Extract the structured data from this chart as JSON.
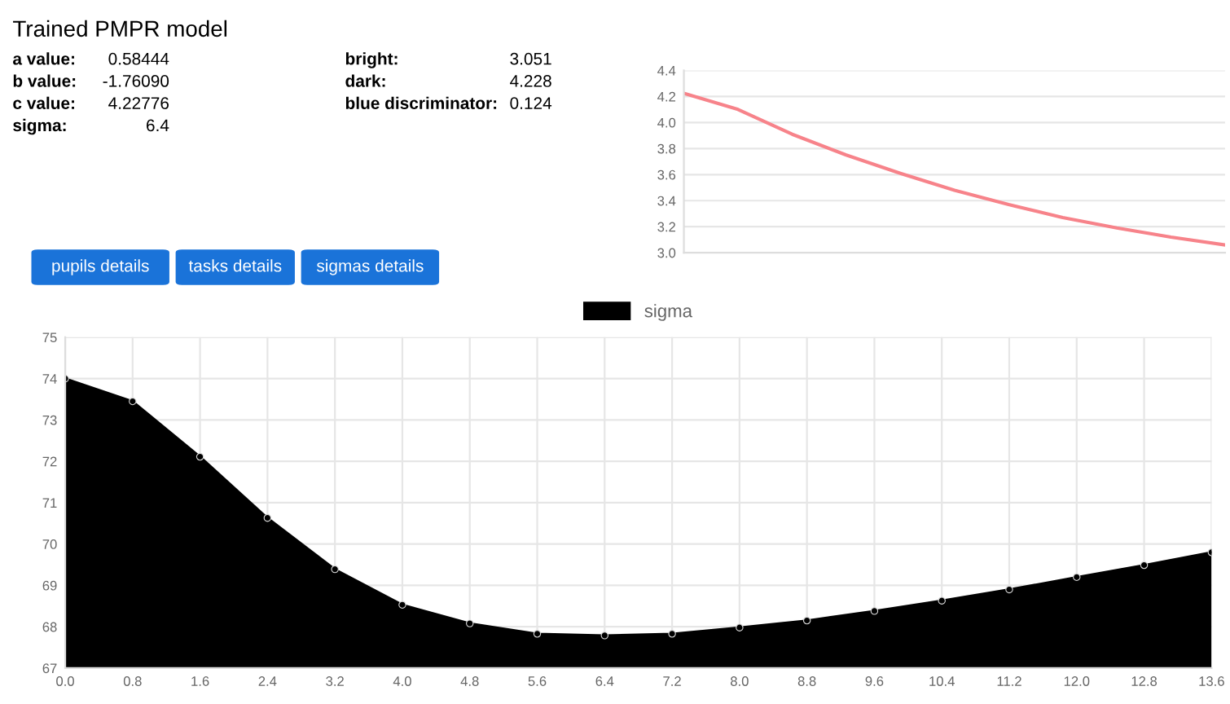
{
  "chart_data": [
    {
      "type": "other",
      "title": "Trained PMPR model",
      "annotations": [
        "a value:",
        "0.58444",
        "b value:",
        "-1.76090",
        "c value:",
        "4.22776",
        "sigma:",
        "6.4",
        "bright:",
        "3.051",
        "dark:",
        "4.228",
        "blue discriminator:",
        "0.124",
        "pupils details",
        "tasks details",
        "sigmas details"
      ]
    },
    {
      "type": "line",
      "categories": [
        null,
        null,
        null,
        null,
        null,
        null,
        null,
        null,
        null,
        null,
        null
      ],
      "series": [
        {
          "color": "#f7838a",
          "values": [
            4.225,
            4.1,
            3.91,
            3.75,
            3.61,
            3.48,
            3.37,
            3.27,
            3.19,
            3.12,
            3.06
          ]
        }
      ],
      "ylim": [
        3.0,
        4.4
      ],
      "yticks": [
        {
          "value": 3.0,
          "label": "3.0"
        },
        {
          "value": 3.2,
          "label": "3.2"
        },
        {
          "value": 3.4,
          "label": "3.4"
        },
        {
          "value": 3.6,
          "label": "3.6"
        },
        {
          "value": 3.8,
          "label": "3.8"
        },
        {
          "value": 4.0,
          "label": "4.0"
        },
        {
          "value": 4.2,
          "label": "4.2"
        },
        {
          "value": 4.4,
          "label": "4.4"
        }
      ],
      "grid": "y",
      "tick_labels": "y",
      "marker": "none"
    },
    {
      "type": "area",
      "x": [
        0.0,
        0.8,
        1.6,
        2.4,
        3.2,
        4.0,
        4.8,
        5.6,
        6.4,
        7.2,
        8.0,
        8.8,
        9.6,
        10.4,
        11.2,
        12.0,
        12.8,
        13.6
      ],
      "series": [
        {
          "name": "sigma",
          "color": "#000000",
          "values": [
            74.0,
            73.45,
            72.11,
            70.63,
            69.39,
            68.53,
            68.08,
            67.83,
            67.79,
            67.83,
            67.98,
            68.15,
            68.38,
            68.63,
            68.9,
            69.2,
            69.49,
            69.8
          ]
        }
      ],
      "xlim": [
        0.0,
        13.6
      ],
      "xticks": [
        {
          "value": 0.0,
          "label": "0.0"
        },
        {
          "value": 0.8,
          "label": "0.8"
        },
        {
          "value": 1.6,
          "label": "1.6"
        },
        {
          "value": 2.4,
          "label": "2.4"
        },
        {
          "value": 3.2,
          "label": "3.2"
        },
        {
          "value": 4.0,
          "label": "4.0"
        },
        {
          "value": 4.8,
          "label": "4.8"
        },
        {
          "value": 5.6,
          "label": "5.6"
        },
        {
          "value": 6.4,
          "label": "6.4"
        },
        {
          "value": 7.2,
          "label": "7.2"
        },
        {
          "value": 8.0,
          "label": "8.0"
        },
        {
          "value": 8.8,
          "label": "8.8"
        },
        {
          "value": 9.6,
          "label": "9.6"
        },
        {
          "value": 10.4,
          "label": "10.4"
        },
        {
          "value": 11.2,
          "label": "11.2"
        },
        {
          "value": 12.0,
          "label": "12.0"
        },
        {
          "value": 12.8,
          "label": "12.8"
        },
        {
          "value": 13.6,
          "label": "13.6"
        }
      ],
      "ylim": [
        67,
        75
      ],
      "yticks": [
        67,
        68,
        69,
        70,
        71,
        72,
        73,
        74,
        75
      ],
      "grid": true,
      "legend": "top",
      "marker": "circle"
    }
  ]
}
